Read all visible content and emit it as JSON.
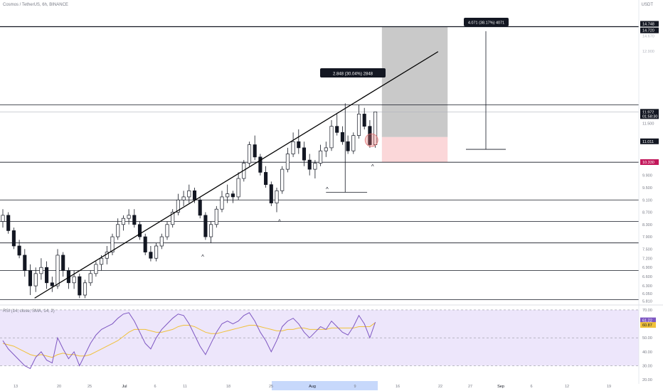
{
  "header": {
    "title": "Cosmos / TetherUS, 6h, BINANCE",
    "currency": "USDT"
  },
  "colors": {
    "up": "#131722",
    "down": "#131722",
    "hline": "#131722",
    "trend": "#000000",
    "target_zone": "#c9c9c9",
    "stop_zone": "#fbd7d9",
    "rsi_band": "#ede6fb",
    "rsi_line": "#7e57c2",
    "rsi_ma": "#f0c13a",
    "rsi_badge": "#7e57c2",
    "ma_badge": "#f0c13a",
    "marker": "#e57373",
    "price_badge_red": "#c2185b"
  },
  "chart_data": [
    {
      "type": "candlestick",
      "title": "Cosmos / TetherUS, 6h, BINANCE",
      "y_axis_labels": [
        "14.748",
        "14.720",
        "14.670",
        "12.900",
        "11.972",
        "11.500",
        "11.011",
        "10.330",
        "9.900",
        "9.500",
        "9.100",
        "8.700",
        "8.300",
        "7.900",
        "7.500",
        "7.200",
        "6.900",
        "6.600",
        "6.300",
        "6.050",
        "5.810"
      ],
      "x_axis_labels": [
        "13",
        "20",
        "25",
        "Jul",
        "6",
        "11",
        "18",
        "25",
        "Aug",
        "9",
        "16",
        "22",
        "27",
        "Sep",
        "6",
        "12",
        "19"
      ],
      "ylim": [
        5.7,
        15.2
      ],
      "horizontal_levels": [
        14.748,
        12.2,
        10.33,
        9.1,
        8.4,
        7.7,
        6.8,
        5.85
      ],
      "last_price": {
        "value": "11.972",
        "countdown": "01:58:30"
      },
      "level_badge": "11.011",
      "red_badge": "10.334",
      "measure_boxes": [
        {
          "text": "2.848 (30.04%) 2848"
        },
        {
          "text": "4.071 (38.17%) 4071"
        }
      ],
      "trendline": {
        "start": {
          "x": 5.8,
          "value": 5.9
        },
        "end": {
          "x": 40.5,
          "value": 11.2
        }
      },
      "target_zone": {
        "top": 14.748,
        "bottom": 11.15
      },
      "stop_zone": {
        "top": 11.15,
        "bottom": 10.33
      },
      "candles": [
        [
          0,
          8.4,
          8.8,
          8.2,
          8.6
        ],
        [
          1,
          8.6,
          8.7,
          8.0,
          8.1
        ],
        [
          2,
          8.1,
          8.2,
          7.5,
          7.6
        ],
        [
          3,
          7.6,
          7.8,
          7.2,
          7.3
        ],
        [
          4,
          7.3,
          7.5,
          6.6,
          6.8
        ],
        [
          5,
          6.8,
          7.0,
          6.0,
          6.3
        ],
        [
          6,
          6.3,
          6.9,
          6.1,
          6.7
        ],
        [
          7,
          6.7,
          7.2,
          6.5,
          6.9
        ],
        [
          8,
          6.9,
          7.1,
          6.2,
          6.4
        ],
        [
          9,
          6.4,
          6.6,
          6.1,
          6.3
        ],
        [
          10,
          6.3,
          7.5,
          6.2,
          7.3
        ],
        [
          11,
          7.3,
          7.4,
          6.6,
          6.8
        ],
        [
          12,
          6.8,
          6.9,
          6.2,
          6.4
        ],
        [
          13,
          6.4,
          6.8,
          6.2,
          6.6
        ],
        [
          14,
          6.6,
          6.7,
          5.9,
          6.0
        ],
        [
          15,
          6.0,
          6.5,
          5.9,
          6.4
        ],
        [
          16,
          6.4,
          6.8,
          6.3,
          6.7
        ],
        [
          17,
          6.7,
          7.1,
          6.6,
          7.0
        ],
        [
          18,
          7.0,
          7.3,
          6.8,
          7.2
        ],
        [
          19,
          7.2,
          7.6,
          7.0,
          7.4
        ],
        [
          20,
          7.4,
          8.0,
          7.3,
          7.9
        ],
        [
          21,
          7.9,
          8.5,
          7.8,
          8.3
        ],
        [
          22,
          8.3,
          8.6,
          8.1,
          8.5
        ],
        [
          23,
          8.5,
          8.8,
          8.3,
          8.6
        ],
        [
          24,
          8.6,
          8.8,
          8.2,
          8.3
        ],
        [
          25,
          8.3,
          8.4,
          7.8,
          7.9
        ],
        [
          26,
          7.9,
          8.0,
          7.3,
          7.4
        ],
        [
          27,
          7.4,
          7.6,
          7.1,
          7.2
        ],
        [
          28,
          7.2,
          7.7,
          7.1,
          7.6
        ],
        [
          29,
          7.6,
          8.0,
          7.5,
          7.9
        ],
        [
          30,
          7.9,
          8.4,
          7.8,
          8.3
        ],
        [
          31,
          8.3,
          8.8,
          8.2,
          8.7
        ],
        [
          32,
          8.7,
          9.3,
          8.6,
          9.1
        ],
        [
          33,
          9.1,
          9.4,
          8.9,
          9.2
        ],
        [
          34,
          9.2,
          9.6,
          9.0,
          9.4
        ],
        [
          35,
          9.4,
          9.5,
          9.0,
          9.1
        ],
        [
          36,
          9.1,
          9.2,
          8.5,
          8.6
        ],
        [
          37,
          8.6,
          8.7,
          7.8,
          7.9
        ],
        [
          38,
          7.9,
          8.4,
          7.7,
          8.3
        ],
        [
          39,
          8.3,
          8.9,
          8.2,
          8.8
        ],
        [
          40,
          8.8,
          9.4,
          8.7,
          9.2
        ],
        [
          41,
          9.2,
          9.6,
          9.0,
          9.3
        ],
        [
          42,
          9.3,
          9.4,
          9.0,
          9.2
        ],
        [
          43,
          9.2,
          10.0,
          9.1,
          9.8
        ],
        [
          44,
          9.8,
          10.4,
          9.7,
          10.3
        ],
        [
          45,
          10.3,
          11.0,
          10.2,
          10.9
        ],
        [
          46,
          10.9,
          11.2,
          10.4,
          10.5
        ],
        [
          47,
          10.5,
          10.6,
          9.9,
          10.0
        ],
        [
          48,
          10.0,
          10.2,
          9.5,
          9.6
        ],
        [
          49,
          9.6,
          9.7,
          8.9,
          9.0
        ],
        [
          50,
          9.0,
          9.5,
          8.7,
          9.4
        ],
        [
          51,
          9.4,
          10.2,
          9.3,
          10.1
        ],
        [
          52,
          10.1,
          10.8,
          10.0,
          10.6
        ],
        [
          53,
          10.6,
          11.3,
          10.5,
          11.0
        ],
        [
          54,
          11.0,
          11.4,
          10.6,
          10.8
        ],
        [
          55,
          10.8,
          11.0,
          10.2,
          10.4
        ],
        [
          56,
          10.4,
          10.6,
          9.9,
          10.1
        ],
        [
          57,
          10.1,
          10.4,
          9.8,
          10.3
        ],
        [
          58,
          10.3,
          10.9,
          10.2,
          10.7
        ],
        [
          59,
          10.7,
          11.0,
          10.5,
          10.8
        ],
        [
          60,
          10.8,
          11.7,
          10.7,
          11.5
        ],
        [
          61,
          11.5,
          11.9,
          11.2,
          11.3
        ],
        [
          62,
          11.3,
          11.5,
          10.9,
          11.0
        ],
        [
          63,
          11.0,
          11.2,
          10.6,
          10.7
        ],
        [
          64,
          10.7,
          11.3,
          10.6,
          11.2
        ],
        [
          65,
          11.2,
          12.2,
          11.1,
          11.9
        ],
        [
          66,
          11.9,
          12.1,
          11.4,
          11.5
        ],
        [
          67,
          11.5,
          11.7,
          10.8,
          10.9
        ],
        [
          68,
          10.9,
          11.9,
          10.8,
          11.97
        ]
      ]
    },
    {
      "type": "line",
      "title": "RSI (14, close, SMA, 14, 2)",
      "y_axis_labels": [
        "70.00",
        "61.22",
        "60.87",
        "50.00",
        "40.00",
        "30.00",
        "20.00"
      ],
      "ylim": [
        17,
        73
      ],
      "band": [
        30,
        70
      ],
      "series": [
        {
          "name": "RSI",
          "values": [
            48,
            42,
            38,
            34,
            30,
            28,
            36,
            40,
            34,
            32,
            50,
            42,
            35,
            40,
            30,
            38,
            46,
            52,
            56,
            58,
            60,
            64,
            67,
            68,
            62,
            54,
            46,
            42,
            50,
            56,
            60,
            64,
            67,
            66,
            60,
            52,
            44,
            38,
            46,
            54,
            60,
            62,
            60,
            62,
            66,
            68,
            62,
            54,
            48,
            40,
            48,
            58,
            62,
            64,
            60,
            54,
            50,
            54,
            58,
            56,
            62,
            58,
            54,
            52,
            58,
            66,
            60,
            50,
            61.22
          ]
        },
        {
          "name": "SMA",
          "values": [
            46,
            45,
            44,
            42,
            40,
            38,
            37,
            38,
            37,
            36,
            38,
            39,
            38,
            38,
            37,
            37,
            38,
            40,
            42,
            44,
            46,
            48,
            51,
            54,
            56,
            56,
            56,
            55,
            54,
            54,
            55,
            56,
            58,
            59,
            59,
            58,
            56,
            54,
            53,
            53,
            54,
            55,
            56,
            57,
            58,
            59,
            59,
            58,
            57,
            56,
            55,
            55,
            56,
            56,
            57,
            57,
            56,
            56,
            56,
            56,
            57,
            57,
            57,
            57,
            57,
            58,
            58,
            58,
            60.87
          ]
        }
      ]
    }
  ]
}
